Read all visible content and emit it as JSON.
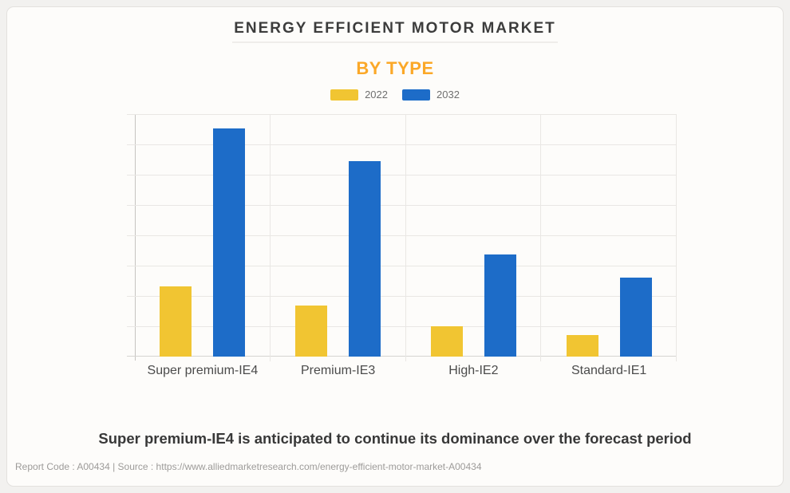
{
  "header": {
    "title": "ENERGY EFFICIENT MOTOR MARKET",
    "subtitle": "BY TYPE"
  },
  "caption": "Super premium-IE4 is anticipated to continue its dominance over the forecast period",
  "footer": "Report Code : A00434   |   Source : https://www.alliedmarketresearch.com/energy-efficient-motor-market-A00434",
  "colors": {
    "series_2022": "#f1c532",
    "series_2032": "#1d6cc8",
    "subtitle_accent": "#fba828",
    "card_background": "#fdfcfa",
    "gridline": "#e9e7e4"
  },
  "chart_data": {
    "type": "bar",
    "title": "ENERGY EFFICIENT MOTOR MARKET",
    "subtitle": "BY TYPE",
    "categories": [
      "Super premium-IE4",
      "Premium-IE3",
      "High-IE2",
      "Standard-IE1"
    ],
    "series": [
      {
        "name": "2022",
        "color": "#f1c532",
        "values": [
          29,
          21,
          12.5,
          9
        ]
      },
      {
        "name": "2032",
        "color": "#1d6cc8",
        "values": [
          94,
          80.5,
          42,
          32.5
        ]
      }
    ],
    "ylim": [
      0,
      100
    ],
    "value_scale": "relative (no numeric y-axis labels shown in chart)",
    "grid_intervals": 8,
    "grid": true,
    "y_axis_labels_visible": false,
    "legend_position": "top-center"
  }
}
